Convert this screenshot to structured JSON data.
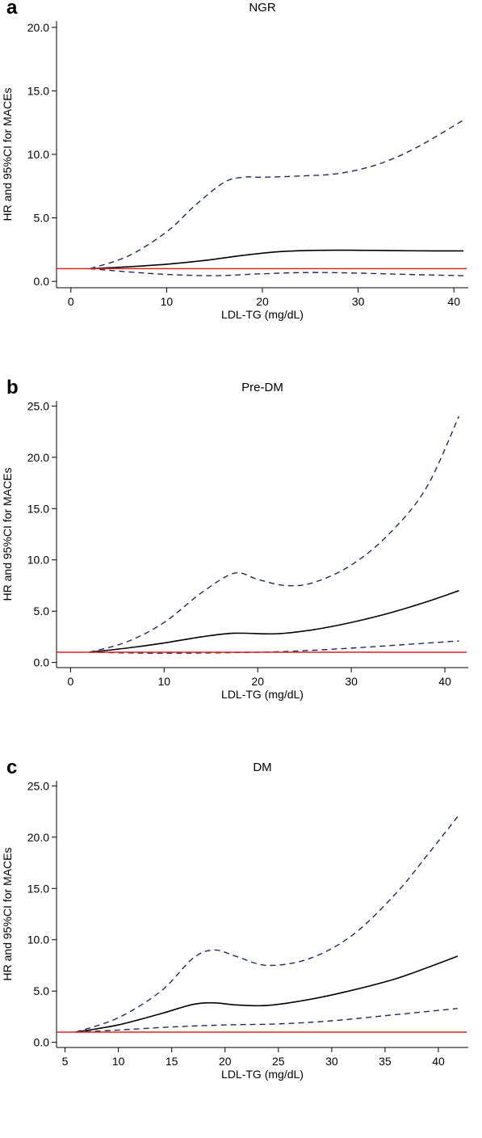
{
  "figure": {
    "panels": [
      {
        "letter": "a",
        "title": "NGR"
      },
      {
        "letter": "b",
        "title": "Pre-DM"
      },
      {
        "letter": "c",
        "title": "DM"
      }
    ]
  },
  "chart_data": [
    {
      "type": "line",
      "title": "NGR",
      "xlabel": "LDL-TG (mg/dL)",
      "ylabel": "HR and 95%CI for MACEs",
      "xlim": [
        -1.5,
        41.5
      ],
      "ylim": [
        -0.5,
        20.5
      ],
      "xticks": [
        0,
        10,
        20,
        30,
        40
      ],
      "yticks": [
        0,
        5,
        10,
        15,
        20
      ],
      "ytick_labels": [
        "0.0",
        "5.0",
        "10.0",
        "15.0",
        "20.0"
      ],
      "reference_line": 1.0,
      "grid": false,
      "series": [
        {
          "style": "solid",
          "color": "#000000",
          "x": [
            2,
            6,
            10,
            14,
            18,
            22,
            26,
            30,
            34,
            38,
            41
          ],
          "y": [
            1.0,
            1.15,
            1.35,
            1.65,
            2.05,
            2.35,
            2.45,
            2.45,
            2.42,
            2.4,
            2.4
          ]
        },
        {
          "style": "dashed",
          "color": "#1f2a5c",
          "x": [
            2,
            6,
            10,
            13,
            16,
            18,
            20,
            24,
            28,
            32,
            36,
            41
          ],
          "y": [
            1.0,
            2.0,
            3.9,
            6.0,
            7.8,
            8.2,
            8.2,
            8.3,
            8.5,
            9.2,
            10.5,
            12.7
          ]
        },
        {
          "style": "dashed",
          "color": "#1f2a5c",
          "x": [
            2,
            6,
            10,
            15,
            20,
            25,
            30,
            35,
            41
          ],
          "y": [
            1.0,
            0.75,
            0.55,
            0.45,
            0.6,
            0.7,
            0.65,
            0.55,
            0.45
          ]
        }
      ]
    },
    {
      "type": "line",
      "title": "Pre-DM",
      "xlabel": "LDL-TG (mg/dL)",
      "ylabel": "HR and 95%CI for MACEs",
      "xlim": [
        -1.5,
        42.5
      ],
      "ylim": [
        -0.5,
        25.5
      ],
      "xticks": [
        0,
        10,
        20,
        30,
        40
      ],
      "yticks": [
        0,
        5,
        10,
        15,
        20,
        25
      ],
      "ytick_labels": [
        "0.0",
        "5.0",
        "10.0",
        "15.0",
        "20.0",
        "25.0"
      ],
      "reference_line": 1.0,
      "grid": false,
      "series": [
        {
          "style": "solid",
          "color": "#000000",
          "x": [
            2,
            6,
            10,
            14,
            17.5,
            22,
            26,
            30,
            34,
            38,
            41.5
          ],
          "y": [
            1.0,
            1.4,
            1.9,
            2.5,
            2.85,
            2.8,
            3.2,
            3.9,
            4.8,
            5.9,
            7.0
          ]
        },
        {
          "style": "dashed",
          "color": "#1f2a5c",
          "x": [
            2,
            6,
            10,
            14,
            17.5,
            20,
            23,
            26,
            30,
            34,
            38,
            41.5
          ],
          "y": [
            1.0,
            2.0,
            3.9,
            6.8,
            8.7,
            8.1,
            7.5,
            7.8,
            9.5,
            12.5,
            17.0,
            24.0
          ]
        },
        {
          "style": "dashed",
          "color": "#1f2a5c",
          "x": [
            2,
            10,
            20,
            25,
            30,
            35,
            41.5
          ],
          "y": [
            1.0,
            0.9,
            1.0,
            1.15,
            1.4,
            1.7,
            2.1
          ]
        }
      ]
    },
    {
      "type": "line",
      "title": "DM",
      "xlabel": "LDL-TG (mg/dL)",
      "ylabel": "HR and 95%CI for MACEs",
      "xlim": [
        4.2,
        42.8
      ],
      "ylim": [
        -0.5,
        25.5
      ],
      "xticks": [
        5,
        10,
        15,
        20,
        25,
        30,
        35,
        40
      ],
      "yticks": [
        0,
        5,
        10,
        15,
        20,
        25
      ],
      "ytick_labels": [
        "0.0",
        "5.0",
        "10.0",
        "15.0",
        "20.0",
        "25.0"
      ],
      "reference_line": 1.0,
      "grid": false,
      "series": [
        {
          "style": "solid",
          "color": "#000000",
          "x": [
            6,
            10,
            14,
            17,
            19,
            21,
            24,
            28,
            32,
            36,
            39,
            41.8
          ],
          "y": [
            1.0,
            1.7,
            2.8,
            3.7,
            3.85,
            3.65,
            3.6,
            4.2,
            5.1,
            6.2,
            7.3,
            8.4
          ]
        },
        {
          "style": "dashed",
          "color": "#1f2a5c",
          "x": [
            6,
            10,
            14,
            17,
            19,
            21,
            24,
            28,
            32,
            36,
            39,
            41.8
          ],
          "y": [
            1.0,
            2.4,
            5.0,
            8.2,
            9.0,
            8.4,
            7.5,
            8.2,
            10.5,
            14.5,
            18.3,
            22.0
          ]
        },
        {
          "style": "dashed",
          "color": "#1f2a5c",
          "x": [
            6,
            10,
            15,
            20,
            25,
            30,
            35,
            41.8
          ],
          "y": [
            1.0,
            1.2,
            1.5,
            1.7,
            1.8,
            2.1,
            2.6,
            3.3
          ]
        }
      ]
    }
  ]
}
